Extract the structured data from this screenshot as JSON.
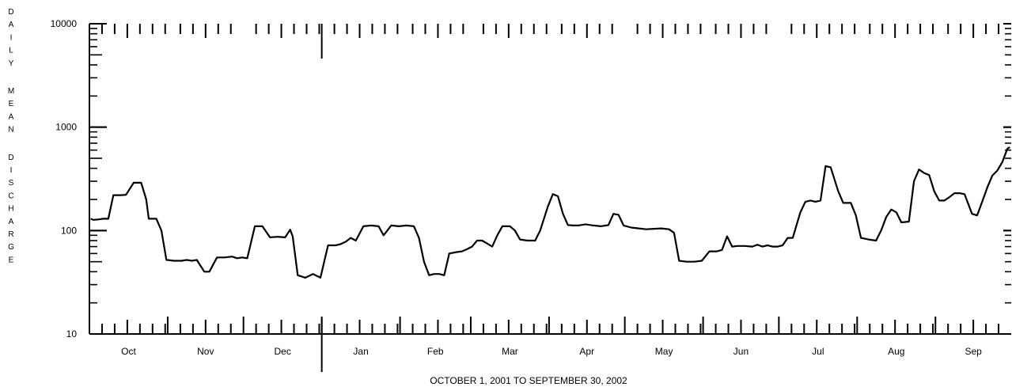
{
  "chart_data": {
    "type": "line",
    "ylabel": "DAILY MEAN DISCHARGE",
    "xlabel": "OCTOBER 1, 2001  TO  SEPTEMBER 30, 2002",
    "yscale": "log",
    "ylim": [
      10,
      10000
    ],
    "xlim": [
      "2001-10-01",
      "2002-09-30"
    ],
    "y_ticks": [
      "10",
      "100",
      "1000",
      "10000"
    ],
    "months": [
      "Oct",
      "Nov",
      "Dec",
      "Jan",
      "Feb",
      "Mar",
      "Apr",
      "May",
      "Jun",
      "Jul",
      "Aug",
      "Sep"
    ],
    "year_divider": "2002-01-01",
    "grid": false,
    "series": [
      {
        "points": [
          [
            "2001-10-01",
            130
          ],
          [
            "2001-10-02",
            127
          ],
          [
            "2001-10-04",
            128
          ],
          [
            "2001-10-06",
            130
          ],
          [
            "2001-10-08",
            130
          ],
          [
            "2001-10-10",
            220
          ],
          [
            "2001-10-13",
            220
          ],
          [
            "2001-10-15",
            222
          ],
          [
            "2001-10-18",
            290
          ],
          [
            "2001-10-21",
            290
          ],
          [
            "2001-10-23",
            200
          ],
          [
            "2001-10-24",
            130
          ],
          [
            "2001-10-27",
            130
          ],
          [
            "2001-10-29",
            100
          ],
          [
            "2001-10-31",
            52
          ],
          [
            "2001-11-03",
            51
          ],
          [
            "2001-11-06",
            51
          ],
          [
            "2001-11-08",
            52
          ],
          [
            "2001-11-10",
            51
          ],
          [
            "2001-11-12",
            52
          ],
          [
            "2001-11-15",
            40
          ],
          [
            "2001-11-17",
            40
          ],
          [
            "2001-11-20",
            55
          ],
          [
            "2001-11-23",
            55
          ],
          [
            "2001-11-26",
            56
          ],
          [
            "2001-11-28",
            54
          ],
          [
            "2001-11-30",
            55
          ],
          [
            "2001-12-02",
            54
          ],
          [
            "2001-12-05",
            110
          ],
          [
            "2001-12-08",
            110
          ],
          [
            "2001-12-11",
            86
          ],
          [
            "2001-12-14",
            87
          ],
          [
            "2001-12-17",
            86
          ],
          [
            "2001-12-19",
            102
          ],
          [
            "2001-12-20",
            88
          ],
          [
            "2001-12-22",
            37
          ],
          [
            "2001-12-25",
            35
          ],
          [
            "2001-12-28",
            38
          ],
          [
            "2001-12-31",
            35
          ],
          [
            "2002-01-03",
            72
          ],
          [
            "2002-01-06",
            72
          ],
          [
            "2002-01-08",
            74
          ],
          [
            "2002-01-10",
            78
          ],
          [
            "2002-01-12",
            85
          ],
          [
            "2002-01-14",
            80
          ],
          [
            "2002-01-17",
            110
          ],
          [
            "2002-01-20",
            112
          ],
          [
            "2002-01-23",
            110
          ],
          [
            "2002-01-25",
            90
          ],
          [
            "2002-01-28",
            112
          ],
          [
            "2002-01-31",
            110
          ],
          [
            "2002-02-03",
            112
          ],
          [
            "2002-02-06",
            110
          ],
          [
            "2002-02-08",
            85
          ],
          [
            "2002-02-10",
            50
          ],
          [
            "2002-02-12",
            37
          ],
          [
            "2002-02-14",
            38
          ],
          [
            "2002-02-16",
            38
          ],
          [
            "2002-02-18",
            37
          ],
          [
            "2002-02-20",
            60
          ],
          [
            "2002-02-23",
            62
          ],
          [
            "2002-02-25",
            63
          ],
          [
            "2002-02-27",
            66
          ],
          [
            "2002-03-01",
            70
          ],
          [
            "2002-03-03",
            80
          ],
          [
            "2002-03-05",
            80
          ],
          [
            "2002-03-07",
            75
          ],
          [
            "2002-03-09",
            70
          ],
          [
            "2002-03-11",
            90
          ],
          [
            "2002-03-13",
            110
          ],
          [
            "2002-03-16",
            110
          ],
          [
            "2002-03-18",
            100
          ],
          [
            "2002-03-20",
            82
          ],
          [
            "2002-03-23",
            80
          ],
          [
            "2002-03-26",
            80
          ],
          [
            "2002-03-28",
            100
          ],
          [
            "2002-03-31",
            170
          ],
          [
            "2002-04-02",
            225
          ],
          [
            "2002-04-04",
            215
          ],
          [
            "2002-04-06",
            145
          ],
          [
            "2002-04-08",
            113
          ],
          [
            "2002-04-10",
            112
          ],
          [
            "2002-04-12",
            112
          ],
          [
            "2002-04-15",
            115
          ],
          [
            "2002-04-18",
            112
          ],
          [
            "2002-04-21",
            110
          ],
          [
            "2002-04-24",
            113
          ],
          [
            "2002-04-26",
            145
          ],
          [
            "2002-04-28",
            142
          ],
          [
            "2002-04-30",
            112
          ],
          [
            "2002-05-03",
            107
          ],
          [
            "2002-05-06",
            105
          ],
          [
            "2002-05-09",
            103
          ],
          [
            "2002-05-12",
            104
          ],
          [
            "2002-05-15",
            105
          ],
          [
            "2002-05-18",
            103
          ],
          [
            "2002-05-20",
            95
          ],
          [
            "2002-05-22",
            51
          ],
          [
            "2002-05-25",
            50
          ],
          [
            "2002-05-28",
            50
          ],
          [
            "2002-05-31",
            51
          ],
          [
            "2002-06-03",
            63
          ],
          [
            "2002-06-06",
            63
          ],
          [
            "2002-06-08",
            65
          ],
          [
            "2002-06-10",
            88
          ],
          [
            "2002-06-12",
            70
          ],
          [
            "2002-06-14",
            71
          ],
          [
            "2002-06-17",
            71
          ],
          [
            "2002-06-20",
            70
          ],
          [
            "2002-06-22",
            73
          ],
          [
            "2002-06-24",
            70
          ],
          [
            "2002-06-26",
            72
          ],
          [
            "2002-06-28",
            70
          ],
          [
            "2002-06-30",
            70
          ],
          [
            "2002-07-02",
            72
          ],
          [
            "2002-07-04",
            85
          ],
          [
            "2002-07-06",
            85
          ],
          [
            "2002-07-09",
            150
          ],
          [
            "2002-07-11",
            190
          ],
          [
            "2002-07-13",
            195
          ],
          [
            "2002-07-15",
            190
          ],
          [
            "2002-07-17",
            195
          ],
          [
            "2002-07-19",
            420
          ],
          [
            "2002-07-21",
            410
          ],
          [
            "2002-07-24",
            240
          ],
          [
            "2002-07-26",
            185
          ],
          [
            "2002-07-29",
            185
          ],
          [
            "2002-07-31",
            140
          ],
          [
            "2002-08-02",
            85
          ],
          [
            "2002-08-05",
            82
          ],
          [
            "2002-08-08",
            80
          ],
          [
            "2002-08-10",
            100
          ],
          [
            "2002-08-12",
            135
          ],
          [
            "2002-08-14",
            160
          ],
          [
            "2002-08-16",
            150
          ],
          [
            "2002-08-18",
            120
          ],
          [
            "2002-08-21",
            122
          ],
          [
            "2002-08-23",
            300
          ],
          [
            "2002-08-25",
            390
          ],
          [
            "2002-08-27",
            360
          ],
          [
            "2002-08-29",
            345
          ],
          [
            "2002-08-31",
            240
          ],
          [
            "2002-09-02",
            195
          ],
          [
            "2002-09-04",
            195
          ],
          [
            "2002-09-06",
            210
          ],
          [
            "2002-09-08",
            230
          ],
          [
            "2002-09-10",
            230
          ],
          [
            "2002-09-12",
            225
          ],
          [
            "2002-09-15",
            145
          ],
          [
            "2002-09-17",
            140
          ],
          [
            "2002-09-19",
            190
          ],
          [
            "2002-09-21",
            260
          ],
          [
            "2002-09-23",
            340
          ],
          [
            "2002-09-25",
            380
          ],
          [
            "2002-09-27",
            460
          ],
          [
            "2002-09-29",
            620
          ],
          [
            "2002-09-30",
            640
          ]
        ]
      }
    ]
  }
}
